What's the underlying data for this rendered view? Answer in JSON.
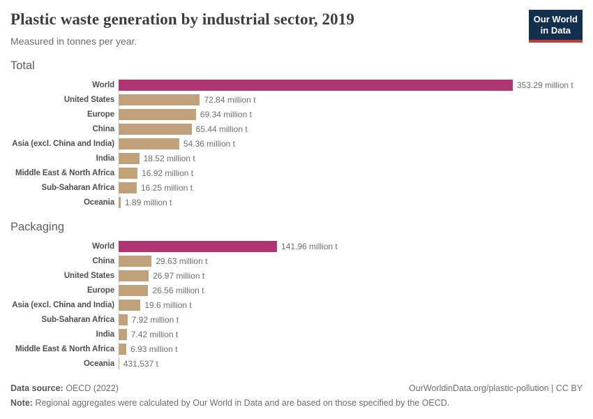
{
  "header": {
    "title": "Plastic waste generation by industrial sector, 2019",
    "subtitle": "Measured in tonnes per year.",
    "logo": {
      "line1": "Our World",
      "line2": "in Data"
    }
  },
  "colors": {
    "highlight_bar": "#b03471",
    "bar": "#c0a17a",
    "axis_line": "#dddddd",
    "logo_navy": "#14304f",
    "logo_red": "#c93a2e"
  },
  "chart_data": [
    {
      "type": "bar",
      "title": "Total",
      "orientation": "horizontal",
      "unit": "tonnes per year",
      "x_max_million_t": 353.29,
      "grid": false,
      "legend": "none",
      "rows": [
        {
          "entity": "World",
          "value_million_t": 353.29,
          "display": "353.29 million t",
          "highlight": true
        },
        {
          "entity": "United States",
          "value_million_t": 72.84,
          "display": "72.84 million t",
          "highlight": false
        },
        {
          "entity": "Europe",
          "value_million_t": 69.34,
          "display": "69.34 million t",
          "highlight": false
        },
        {
          "entity": "China",
          "value_million_t": 65.44,
          "display": "65.44 million t",
          "highlight": false
        },
        {
          "entity": "Asia (excl. China and India)",
          "value_million_t": 54.36,
          "display": "54.36 million t",
          "highlight": false
        },
        {
          "entity": "India",
          "value_million_t": 18.52,
          "display": "18.52 million t",
          "highlight": false
        },
        {
          "entity": "Middle East & North Africa",
          "value_million_t": 16.92,
          "display": "16.92 million t",
          "highlight": false
        },
        {
          "entity": "Sub-Saharan Africa",
          "value_million_t": 16.25,
          "display": "16.25 million t",
          "highlight": false
        },
        {
          "entity": "Oceania",
          "value_million_t": 1.89,
          "display": "1.89 million t",
          "highlight": false
        }
      ]
    },
    {
      "type": "bar",
      "title": "Packaging",
      "orientation": "horizontal",
      "unit": "tonnes per year",
      "x_max_million_t": 353.29,
      "grid": false,
      "legend": "none",
      "rows": [
        {
          "entity": "World",
          "value_million_t": 141.96,
          "display": "141.96 million t",
          "highlight": true
        },
        {
          "entity": "China",
          "value_million_t": 29.63,
          "display": "29.63 million t",
          "highlight": false
        },
        {
          "entity": "United States",
          "value_million_t": 26.97,
          "display": "26.97 million t",
          "highlight": false
        },
        {
          "entity": "Europe",
          "value_million_t": 26.56,
          "display": "26.56 million t",
          "highlight": false
        },
        {
          "entity": "Asia (excl. China and India)",
          "value_million_t": 19.6,
          "display": "19.6 million t",
          "highlight": false
        },
        {
          "entity": "Sub-Saharan Africa",
          "value_million_t": 7.92,
          "display": "7.92 million t",
          "highlight": false
        },
        {
          "entity": "India",
          "value_million_t": 7.42,
          "display": "7.42 million t",
          "highlight": false
        },
        {
          "entity": "Middle East & North Africa",
          "value_million_t": 6.93,
          "display": "6.93 million t",
          "highlight": false
        },
        {
          "entity": "Oceania",
          "value_million_t": 0.431537,
          "display": "431,537 t",
          "highlight": false
        }
      ]
    }
  ],
  "footer": {
    "datasource_label": "Data source:",
    "datasource_value": "OECD (2022)",
    "credit": "OurWorldinData.org/plastic-pollution | CC BY",
    "note_label": "Note:",
    "note_text": "Regional aggregates were calculated by Our World in Data and are based on those specified by the OECD."
  }
}
